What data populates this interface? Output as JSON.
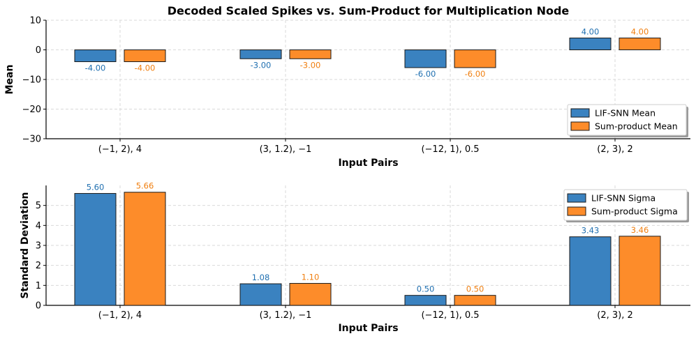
{
  "colors": {
    "series1": "#3a82c0",
    "series2": "#fd8c2a",
    "label1": "#1f6fb0",
    "label2": "#f07f10",
    "edge": "#1a1a1a"
  },
  "chart_data": [
    {
      "type": "bar",
      "title": "Decoded Scaled Spikes vs. Sum-Product for Multiplication Node",
      "xlabel": "Input Pairs",
      "ylabel": "Mean",
      "ylim": [
        -30,
        10
      ],
      "yticks": [
        10,
        0,
        -10,
        -20,
        -30
      ],
      "ytick_labels": [
        "10",
        "0",
        "−10",
        "−20",
        "−30"
      ],
      "grid": true,
      "legend_position": "bottom-right",
      "categories": [
        "(−1, 2), 4",
        "(3, 1.2), −1",
        "(−12, 1), 0.5",
        "(2, 3), 2"
      ],
      "series": [
        {
          "name": "LIF-SNN Mean",
          "values": [
            -4.0,
            -3.0,
            -6.0,
            4.0
          ],
          "labels": [
            "-4.00",
            "-3.00",
            "-6.00",
            "4.00"
          ]
        },
        {
          "name": "Sum-product Mean",
          "values": [
            -4.0,
            -3.0,
            -6.0,
            4.0
          ],
          "labels": [
            "-4.00",
            "-3.00",
            "-6.00",
            "4.00"
          ]
        }
      ]
    },
    {
      "type": "bar",
      "title": "",
      "xlabel": "Input Pairs",
      "ylabel": "Standard Deviation",
      "ylim": [
        0,
        6
      ],
      "yticks": [
        0,
        1,
        2,
        3,
        4,
        5
      ],
      "ytick_labels": [
        "0",
        "1",
        "2",
        "3",
        "4",
        "5"
      ],
      "grid": true,
      "legend_position": "top-right",
      "categories": [
        "(−1, 2), 4",
        "(3, 1.2), −1",
        "(−12, 1), 0.5",
        "(2, 3), 2"
      ],
      "series": [
        {
          "name": "LIF-SNN Sigma",
          "values": [
            5.6,
            1.08,
            0.5,
            3.43
          ],
          "labels": [
            "5.60",
            "1.08",
            "0.50",
            "3.43"
          ]
        },
        {
          "name": "Sum-product Sigma",
          "values": [
            5.66,
            1.1,
            0.5,
            3.46
          ],
          "labels": [
            "5.66",
            "1.10",
            "0.50",
            "3.46"
          ]
        }
      ]
    }
  ]
}
